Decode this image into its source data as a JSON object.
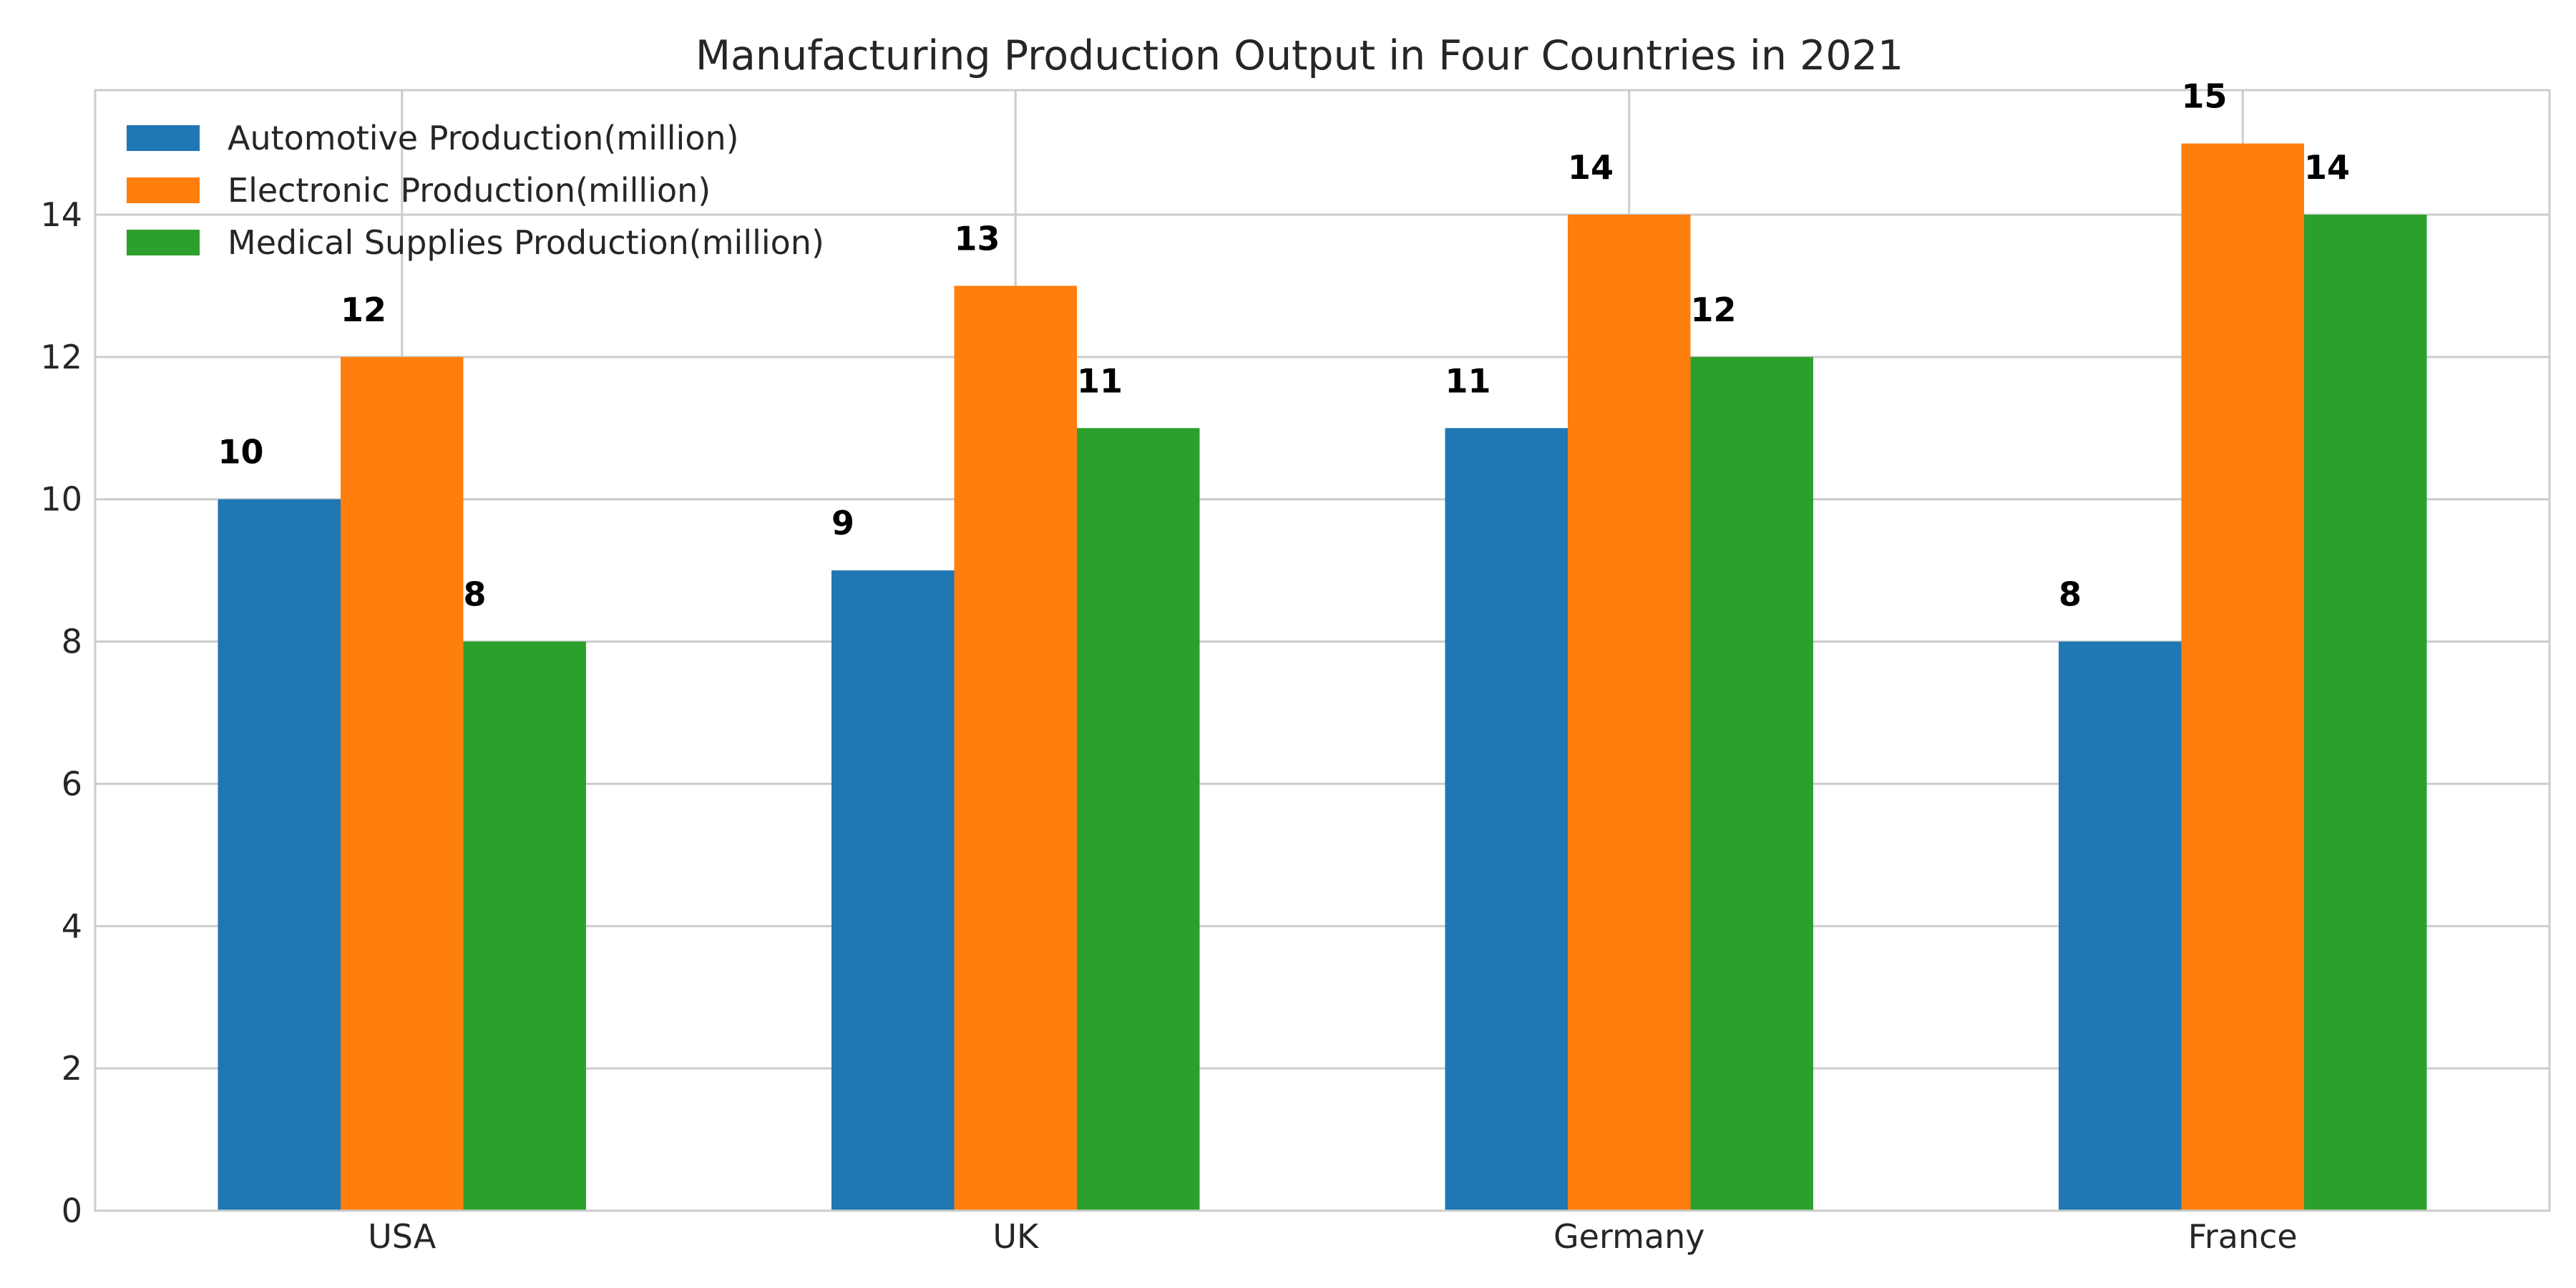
{
  "chart_data": {
    "type": "bar",
    "title": "Manufacturing Production Output in Four Countries in 2021",
    "xlabel": "",
    "ylabel": "",
    "categories": [
      "USA",
      "UK",
      "Germany",
      "France"
    ],
    "series": [
      {
        "name": "Automotive Production(million)",
        "values": [
          10,
          9,
          11,
          8
        ],
        "color": "#1f77b4"
      },
      {
        "name": "Electronic Production(million)",
        "values": [
          12,
          13,
          14,
          15
        ],
        "color": "#ff7f0e"
      },
      {
        "name": "Medical Supplies Production(million)",
        "values": [
          8,
          11,
          12,
          14
        ],
        "color": "#2ca02c"
      }
    ],
    "ylim": [
      0,
      15.75
    ],
    "yticks": [
      0,
      2,
      4,
      6,
      8,
      10,
      12,
      14
    ],
    "grid": true,
    "legend_position": "top-left",
    "data_labels": true
  }
}
